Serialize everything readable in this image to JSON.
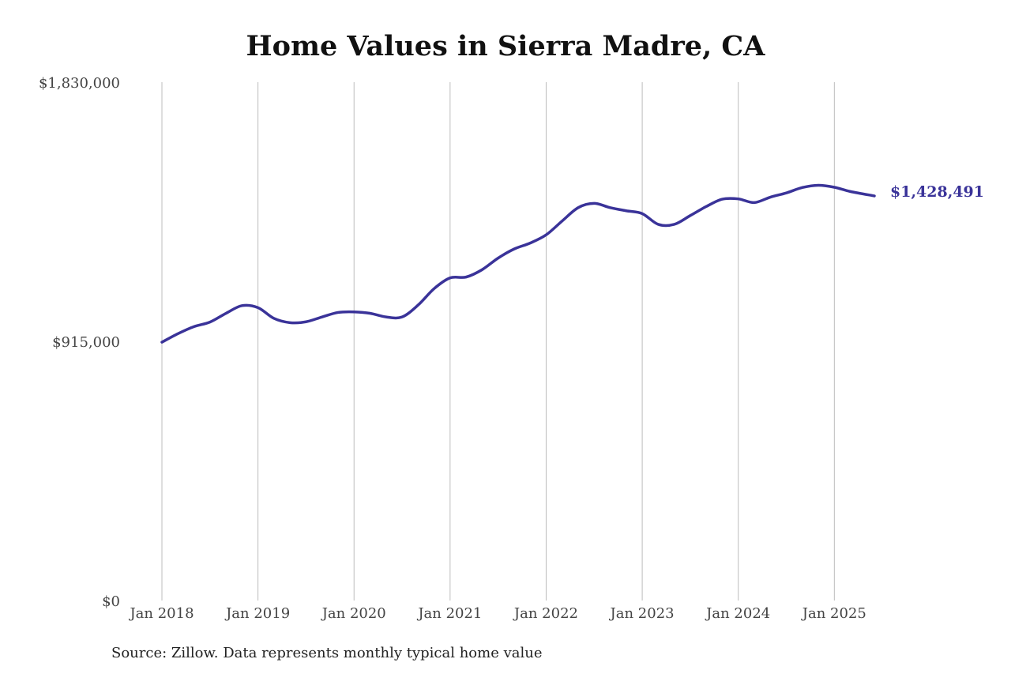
{
  "chart_data": {
    "type": "line",
    "title": "Home Values in Sierra Madre, CA",
    "source": "Source: Zillow. Data represents monthly typical home value",
    "xlabel": "",
    "ylabel": "",
    "x_ticks": [
      "Jan 2018",
      "Jan 2019",
      "Jan 2020",
      "Jan 2021",
      "Jan 2022",
      "Jan 2023",
      "Jan 2024",
      "Jan 2025"
    ],
    "y_ticks": [
      "$0",
      "$915,000",
      "$1,830,000"
    ],
    "y_tick_values": [
      0,
      915000,
      1830000
    ],
    "ylim": [
      0,
      1830000
    ],
    "xlim": [
      "2018-01",
      "2025-06"
    ],
    "grid": "vertical lines at each January",
    "series": [
      {
        "color": "#3a3399",
        "end_label": "$1,428,491",
        "points": [
          [
            "2018-01",
            912000
          ],
          [
            "2018-03",
            942000
          ],
          [
            "2018-05",
            967000
          ],
          [
            "2018-07",
            983000
          ],
          [
            "2018-09",
            1014000
          ],
          [
            "2018-11",
            1041000
          ],
          [
            "2019-01",
            1034000
          ],
          [
            "2019-03",
            996000
          ],
          [
            "2019-05",
            981000
          ],
          [
            "2019-07",
            984000
          ],
          [
            "2019-09",
            1001000
          ],
          [
            "2019-11",
            1017000
          ],
          [
            "2020-01",
            1019000
          ],
          [
            "2020-03",
            1014000
          ],
          [
            "2020-05",
            1001000
          ],
          [
            "2020-07",
            1001000
          ],
          [
            "2020-09",
            1043000
          ],
          [
            "2020-11",
            1101000
          ],
          [
            "2021-01",
            1139000
          ],
          [
            "2021-03",
            1142000
          ],
          [
            "2021-05",
            1168000
          ],
          [
            "2021-07",
            1209000
          ],
          [
            "2021-09",
            1241000
          ],
          [
            "2021-11",
            1262000
          ],
          [
            "2022-01",
            1291000
          ],
          [
            "2022-03",
            1340000
          ],
          [
            "2022-05",
            1387000
          ],
          [
            "2022-07",
            1402000
          ],
          [
            "2022-09",
            1387000
          ],
          [
            "2022-11",
            1376000
          ],
          [
            "2023-01",
            1366000
          ],
          [
            "2023-03",
            1328000
          ],
          [
            "2023-05",
            1328000
          ],
          [
            "2023-07",
            1359000
          ],
          [
            "2023-09",
            1391000
          ],
          [
            "2023-11",
            1417000
          ],
          [
            "2024-01",
            1418000
          ],
          [
            "2024-03",
            1405000
          ],
          [
            "2024-05",
            1424000
          ],
          [
            "2024-07",
            1439000
          ],
          [
            "2024-09",
            1458000
          ],
          [
            "2024-11",
            1466000
          ],
          [
            "2025-01",
            1459000
          ],
          [
            "2025-03",
            1444000
          ],
          [
            "2025-06",
            1428491
          ]
        ]
      }
    ]
  }
}
